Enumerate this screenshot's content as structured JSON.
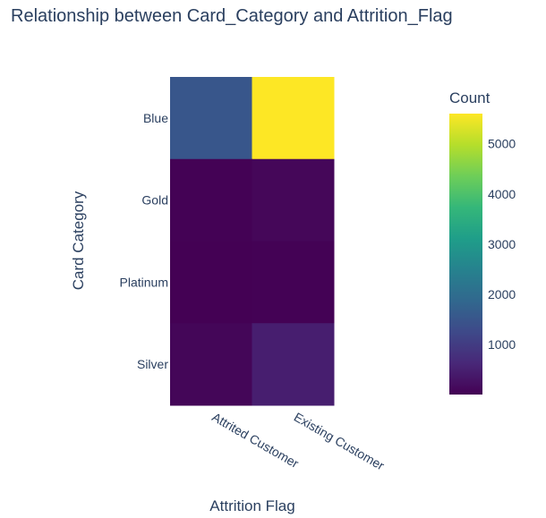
{
  "chart_data": {
    "type": "heatmap",
    "title": "Relationship between Card_Category and Attrition_Flag",
    "xlabel": "Attrition Flag",
    "ylabel": "Card Category",
    "x": [
      "Attrited Customer",
      "Existing Customer"
    ],
    "y": [
      "Blue",
      "Gold",
      "Platinum",
      "Silver"
    ],
    "z": [
      [
        1519,
        7917
      ],
      [
        21,
        95
      ],
      [
        5,
        15
      ],
      [
        82,
        473
      ]
    ],
    "z_display_max": 5600,
    "colorbar": {
      "title": "Count",
      "ticks": [
        "1000",
        "2000",
        "3000",
        "4000",
        "5000"
      ],
      "tick_values": [
        1000,
        2000,
        3000,
        4000,
        5000
      ],
      "range": [
        5,
        5600
      ]
    },
    "colorscale": "viridis",
    "colors": [
      "#440154",
      "#482878",
      "#3e4989",
      "#31688e",
      "#26828e",
      "#1f9e89",
      "#35b779",
      "#6ece58",
      "#b5de2b",
      "#fde725"
    ]
  }
}
